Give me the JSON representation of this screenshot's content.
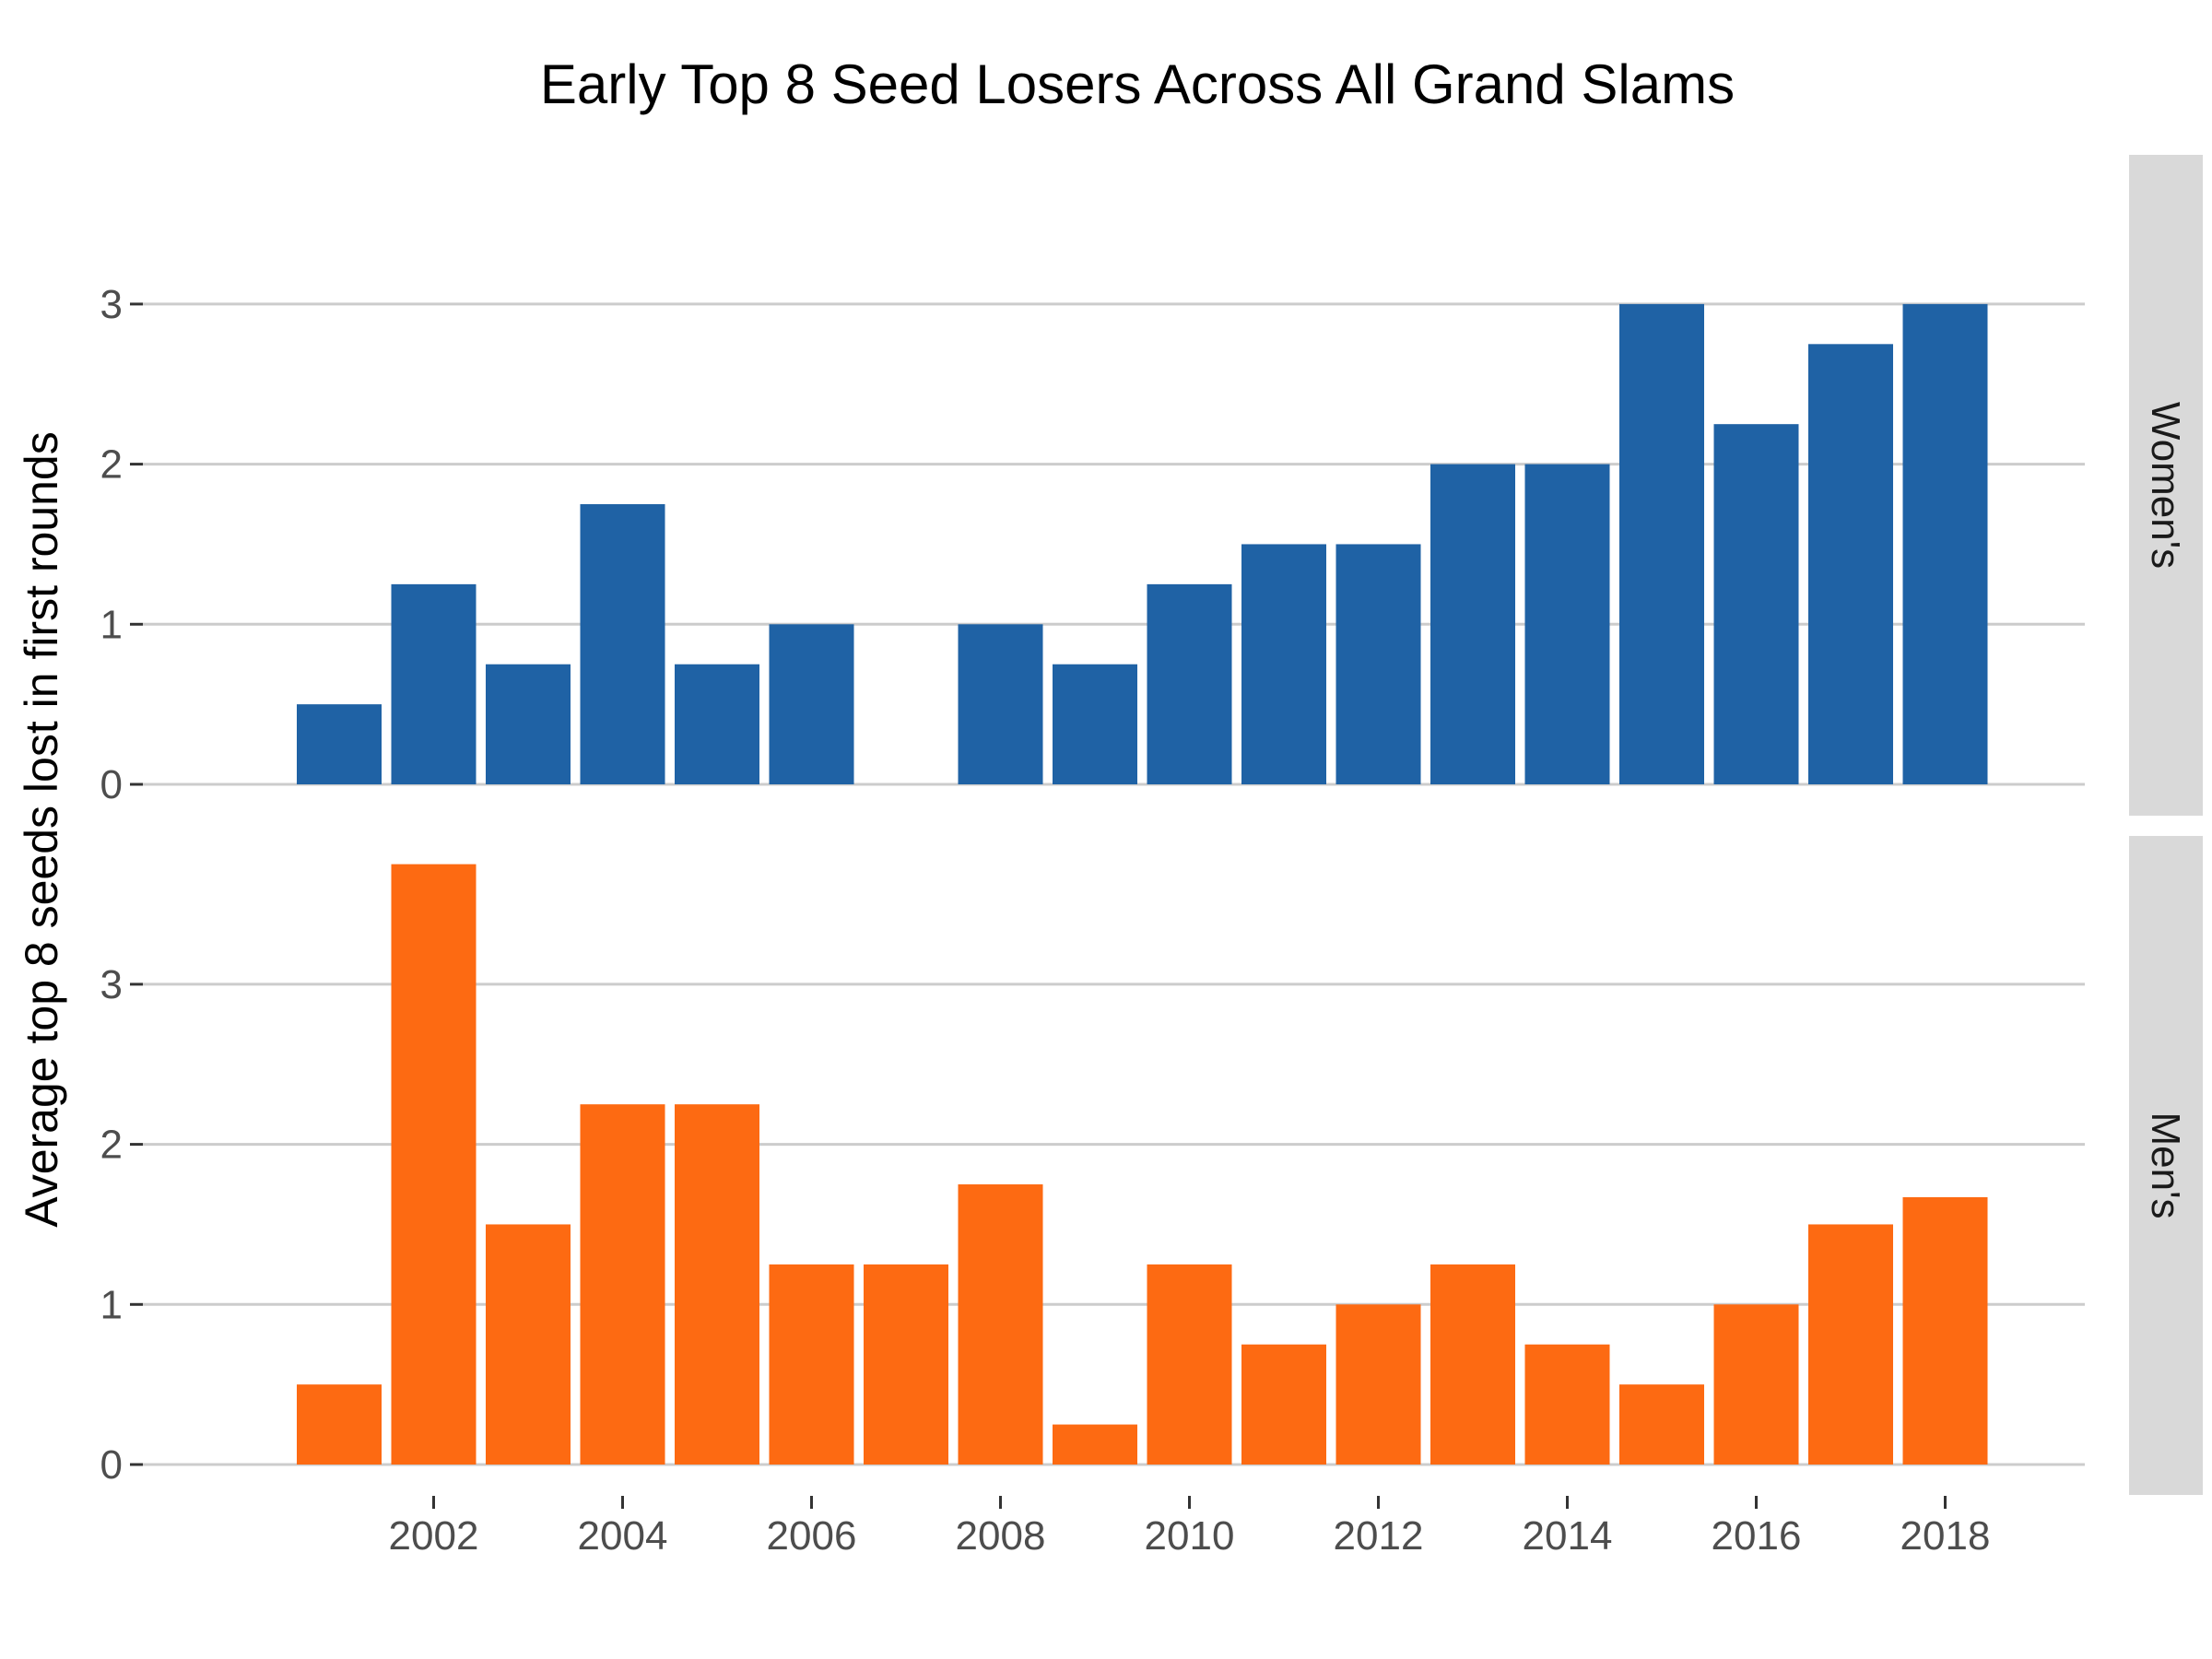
{
  "chart_data": {
    "type": "bar",
    "title": "Early Top 8 Seed Losers Across All Grand Slams",
    "xlabel": "",
    "ylabel": "Average top 8 seeds lost in first rounds",
    "x": [
      2001,
      2002,
      2003,
      2004,
      2005,
      2006,
      2007,
      2008,
      2009,
      2010,
      2011,
      2012,
      2013,
      2014,
      2015,
      2016,
      2017,
      2018
    ],
    "x_ticks": [
      2002,
      2004,
      2006,
      2008,
      2010,
      2012,
      2014,
      2016,
      2018
    ],
    "y_ticks": [
      0,
      1,
      2,
      3
    ],
    "facets": "rows",
    "grid": "horizontal",
    "legend": "none",
    "panels": [
      {
        "strip_label": "Women's",
        "color": "#1f62a5",
        "ylim": [
          0,
          3.0
        ],
        "values": [
          0.5,
          1.25,
          0.75,
          1.75,
          0.75,
          1.0,
          0,
          1.0,
          0.75,
          1.25,
          1.5,
          1.5,
          2.0,
          2.0,
          3.0,
          2.25,
          2.75,
          3.0
        ]
      },
      {
        "strip_label": "Men's",
        "color": "#fd6a12",
        "ylim": [
          0,
          3.75
        ],
        "values": [
          0.5,
          3.75,
          1.5,
          2.25,
          2.25,
          1.25,
          1.25,
          1.75,
          0.25,
          1.25,
          0.75,
          1.0,
          1.25,
          0.75,
          0.5,
          1.0,
          1.5,
          1.67
        ]
      }
    ]
  }
}
